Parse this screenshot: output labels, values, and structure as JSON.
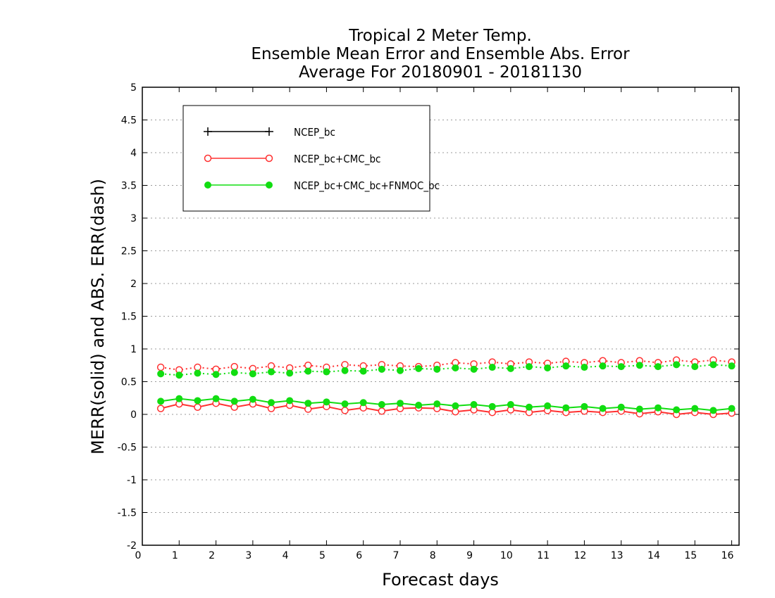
{
  "chart_data": {
    "type": "line",
    "title_lines": [
      "Tropical 2 Meter Temp.",
      "Ensemble Mean Error and Ensemble Abs. Error",
      "Average For 20180901 - 20181130"
    ],
    "xlabel": "Forecast days",
    "ylabel": "MERR(solid) and ABS. ERR(dash)",
    "xlim": [
      0,
      16.2
    ],
    "ylim": [
      -2,
      5
    ],
    "xticks": [
      0,
      1,
      2,
      3,
      4,
      5,
      6,
      7,
      8,
      9,
      10,
      11,
      12,
      13,
      14,
      15,
      16
    ],
    "xtick_labels": [
      "0",
      "1",
      "2",
      "3",
      "4",
      "5",
      "6",
      "7",
      "8",
      "9",
      "10",
      "11",
      "12",
      "13",
      "14",
      "15",
      "16"
    ],
    "yticks": [
      -2,
      -1.5,
      -1,
      -0.5,
      0,
      0.5,
      1,
      1.5,
      2,
      2.5,
      3,
      3.5,
      4,
      4.5,
      5
    ],
    "ytick_labels": [
      "-2",
      "-1.5",
      "-1",
      "-0.5",
      "0",
      "0.5",
      "1",
      "1.5",
      "2",
      "2.5",
      "3",
      "3.5",
      "4",
      "4.5",
      "5"
    ],
    "grid": "horizontal dotted",
    "legend_position": "top-left",
    "x": [
      0.5,
      1,
      1.5,
      2,
      2.5,
      3,
      3.5,
      4,
      4.5,
      5,
      5.5,
      6,
      6.5,
      7,
      7.5,
      8,
      8.5,
      9,
      9.5,
      10,
      10.5,
      11,
      11.5,
      12,
      12.5,
      13,
      13.5,
      14,
      14.5,
      15,
      15.5,
      16
    ],
    "series": [
      {
        "name": "NCEP_bc",
        "color": "#000000",
        "marker": "plus",
        "merr": [],
        "abs_err": []
      },
      {
        "name": "NCEP_bc+CMC_bc",
        "color": "#ff3030",
        "marker": "open-circle",
        "merr": [
          0.09,
          0.16,
          0.11,
          0.17,
          0.11,
          0.16,
          0.09,
          0.14,
          0.08,
          0.12,
          0.06,
          0.1,
          0.05,
          0.09,
          0.1,
          0.09,
          0.04,
          0.07,
          0.03,
          0.07,
          0.03,
          0.06,
          0.03,
          0.05,
          0.03,
          0.05,
          0.01,
          0.04,
          0.0,
          0.03,
          0.0,
          0.02
        ],
        "abs_err": [
          0.72,
          0.68,
          0.72,
          0.69,
          0.73,
          0.7,
          0.74,
          0.71,
          0.75,
          0.72,
          0.76,
          0.74,
          0.76,
          0.74,
          0.73,
          0.75,
          0.79,
          0.77,
          0.8,
          0.77,
          0.8,
          0.78,
          0.81,
          0.79,
          0.82,
          0.79,
          0.82,
          0.79,
          0.83,
          0.8,
          0.83,
          0.8
        ]
      },
      {
        "name": "NCEP_bc+CMC_bc+FNMOC_bc",
        "color": "#11dd11",
        "marker": "filled-circle",
        "merr": [
          0.2,
          0.24,
          0.21,
          0.24,
          0.2,
          0.23,
          0.18,
          0.21,
          0.17,
          0.19,
          0.16,
          0.18,
          0.15,
          0.17,
          0.14,
          0.16,
          0.13,
          0.15,
          0.12,
          0.15,
          0.11,
          0.13,
          0.1,
          0.12,
          0.09,
          0.11,
          0.08,
          0.1,
          0.07,
          0.09,
          0.06,
          0.09
        ],
        "abs_err": [
          0.62,
          0.6,
          0.63,
          0.61,
          0.64,
          0.62,
          0.65,
          0.63,
          0.66,
          0.65,
          0.67,
          0.66,
          0.69,
          0.67,
          0.7,
          0.69,
          0.71,
          0.69,
          0.72,
          0.7,
          0.73,
          0.71,
          0.74,
          0.72,
          0.74,
          0.73,
          0.75,
          0.73,
          0.76,
          0.73,
          0.76,
          0.74
        ]
      }
    ]
  }
}
